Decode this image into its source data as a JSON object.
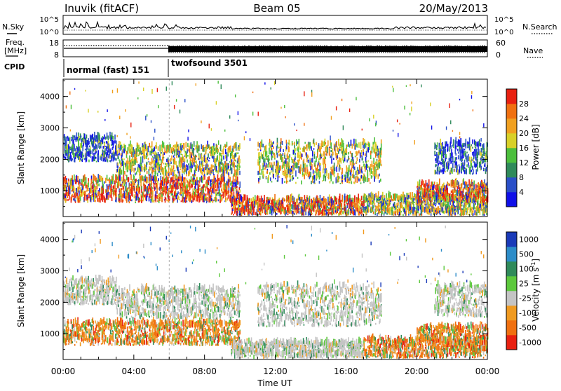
{
  "header": {
    "station": "Inuvik (fitACF)",
    "beam": "Beam 05",
    "date": "20/May/2013"
  },
  "noise_panel": {
    "left_label": "N.Sky",
    "right_label": "N.Search",
    "left_ticks": [
      "10^5",
      "10^0"
    ],
    "right_ticks": [
      "10^5",
      "10^0"
    ]
  },
  "freq_panel": {
    "left_label_1": "Freq.",
    "left_label_2": "[MHz]",
    "left_ticks": [
      "18",
      "8"
    ],
    "right_label": "Nave",
    "right_ticks": [
      "60",
      "0"
    ]
  },
  "cpid": {
    "label": "CPID",
    "segments": [
      {
        "name": "normal (fast) 151",
        "start_hour": 0,
        "end_hour": 6
      },
      {
        "name": "twofsound 3501",
        "start_hour": 6,
        "end_hour": 24
      }
    ]
  },
  "chart_data": [
    {
      "type": "heatmap",
      "title": "",
      "quantity": "Power",
      "xlabel": "",
      "ylabel": "Slant Range [km]",
      "x_range_hours": [
        0,
        24
      ],
      "ylim": [
        180,
        4550
      ],
      "y_ticks": [
        "1000",
        "2000",
        "3000",
        "4000"
      ],
      "colorbar": {
        "label": "Power [dB]",
        "ticks": [
          "4",
          "8",
          "12",
          "16",
          "20",
          "24",
          "28"
        ],
        "colors": [
          "#1010e8",
          "#2a4fc8",
          "#2f8a5a",
          "#4cbf3c",
          "#d8d028",
          "#f0a020",
          "#f07010",
          "#e82010"
        ]
      },
      "scatter_regions": [
        {
          "start_hour": 0,
          "end_hour": 10,
          "range_km": [
            600,
            1350
          ],
          "level": "high"
        },
        {
          "start_hour": 0,
          "end_hour": 3,
          "range_km": [
            1900,
            2700
          ],
          "level": "low"
        },
        {
          "start_hour": 3,
          "end_hour": 10,
          "range_km": [
            1450,
            2400
          ],
          "level": "mid"
        },
        {
          "start_hour": 9.5,
          "end_hour": 17,
          "range_km": [
            200,
            700
          ],
          "level": "high"
        },
        {
          "start_hour": 11,
          "end_hour": 18,
          "range_km": [
            1200,
            2500
          ],
          "level": "mid"
        },
        {
          "start_hour": 17,
          "end_hour": 24,
          "range_km": [
            200,
            800
          ],
          "level": "mid"
        },
        {
          "start_hour": 20,
          "end_hour": 24,
          "range_km": [
            600,
            1200
          ],
          "level": "high"
        },
        {
          "start_hour": 21,
          "end_hour": 24,
          "range_km": [
            1500,
            2500
          ],
          "level": "low"
        }
      ]
    },
    {
      "type": "heatmap",
      "title": "",
      "quantity": "Velocity",
      "xlabel": "Time UT",
      "ylabel": "Slant Range [km]",
      "x_range_hours": [
        0,
        24
      ],
      "ylim": [
        180,
        4550
      ],
      "y_ticks": [
        "1000",
        "2000",
        "3000",
        "4000"
      ],
      "x_ticks": [
        "00:00",
        "04:00",
        "08:00",
        "12:00",
        "16:00",
        "20:00",
        "00:00"
      ],
      "colorbar": {
        "label": "Velocity [m s",
        "label_superscript": "-1",
        "label_close": "]",
        "ticks": [
          "1000",
          "500",
          "100",
          "25",
          "-25",
          "-100",
          "-500",
          "-1000"
        ],
        "colors": [
          "#1a3ab8",
          "#2c8cc8",
          "#2f8a5a",
          "#5cc83c",
          "#c4c4c4",
          "#f09a20",
          "#f07010",
          "#e82010"
        ]
      },
      "scatter_regions": [
        {
          "start_hour": 0,
          "end_hour": 10,
          "range_km": [
            600,
            1350
          ],
          "level": "neg"
        },
        {
          "start_hour": 0,
          "end_hour": 3,
          "range_km": [
            1900,
            2700
          ],
          "level": "zero"
        },
        {
          "start_hour": 3,
          "end_hour": 10,
          "range_km": [
            1450,
            2400
          ],
          "level": "zero"
        },
        {
          "start_hour": 9.5,
          "end_hour": 17,
          "range_km": [
            200,
            700
          ],
          "level": "zero"
        },
        {
          "start_hour": 11,
          "end_hour": 18,
          "range_km": [
            1200,
            2500
          ],
          "level": "zero"
        },
        {
          "start_hour": 17,
          "end_hour": 24,
          "range_km": [
            200,
            800
          ],
          "level": "neg"
        },
        {
          "start_hour": 20,
          "end_hour": 24,
          "range_km": [
            600,
            1200
          ],
          "level": "neg"
        },
        {
          "start_hour": 21,
          "end_hour": 24,
          "range_km": [
            1500,
            2500
          ],
          "level": "zero"
        }
      ]
    }
  ]
}
